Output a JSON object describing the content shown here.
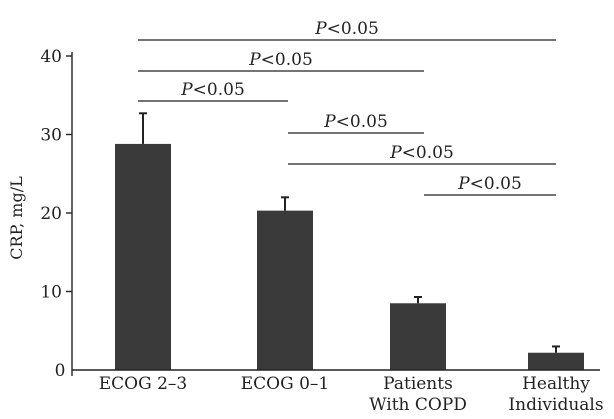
{
  "chart_data": {
    "type": "bar",
    "ylabel": "CRP, mg/L",
    "ylim": [
      0,
      40
    ],
    "yticks": [
      10,
      20,
      30,
      40
    ],
    "y_zero_tick_label": "0",
    "categories": [
      [
        "ECOG 2–3"
      ],
      [
        "ECOG 0–1"
      ],
      [
        "Patients",
        "With COPD"
      ],
      [
        "Healthy",
        "Individuals"
      ]
    ],
    "values": [
      28.8,
      20.3,
      8.5,
      2.2
    ],
    "error_upper": [
      32.7,
      22.0,
      9.3,
      3.0
    ],
    "significance": [
      {
        "from": 0,
        "to": 3,
        "p_italic": "P",
        "p_rest": "<0.05"
      },
      {
        "from": 0,
        "to": 2,
        "p_italic": "P",
        "p_rest": "<0.05"
      },
      {
        "from": 0,
        "to": 1,
        "p_italic": "P",
        "p_rest": "<0.05"
      },
      {
        "from": 1,
        "to": 2,
        "p_italic": "P",
        "p_rest": "<0.05"
      },
      {
        "from": 1,
        "to": 3,
        "p_italic": "P",
        "p_rest": "<0.05"
      },
      {
        "from": 2,
        "to": 3,
        "p_italic": "P",
        "p_rest": "<0.05"
      }
    ],
    "colors": {
      "bar": "#3a3a3a",
      "ink": "#222222"
    }
  }
}
